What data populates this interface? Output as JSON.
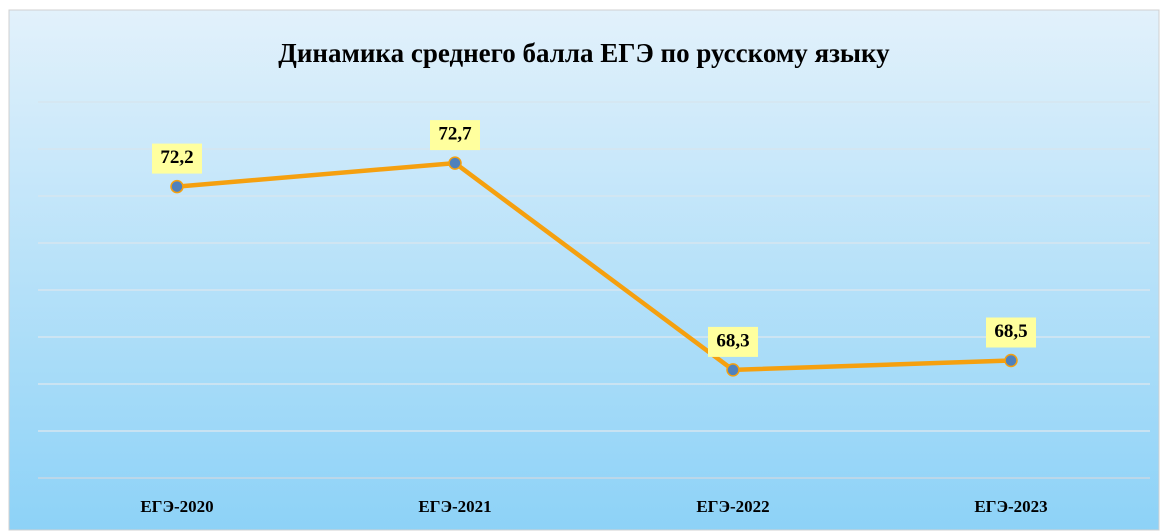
{
  "chart_data": {
    "type": "line",
    "title": "Динамика среднего балла ЕГЭ по русскому языку",
    "categories": [
      "ЕГЭ-2020",
      "ЕГЭ-2021",
      "ЕГЭ-2022",
      "ЕГЭ-2023"
    ],
    "series": [
      {
        "name": null,
        "color": "#f5a00f",
        "marker_color": "#4f81bd",
        "values": [
          72.2,
          72.7,
          68.3,
          68.5
        ],
        "value_labels": [
          "72,2",
          "72,7",
          "68,3",
          "68,5"
        ]
      }
    ],
    "ylim": [
      66,
      74
    ],
    "yticks": [
      66,
      67,
      68,
      69,
      70,
      71,
      72,
      73,
      74
    ],
    "grid": true
  }
}
